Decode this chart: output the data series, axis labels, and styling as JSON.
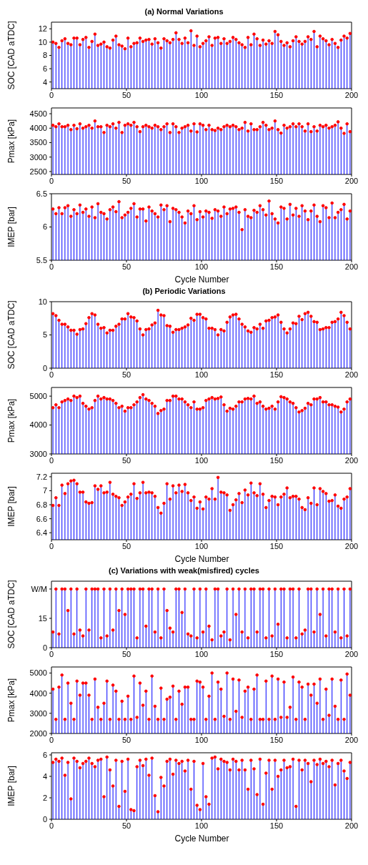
{
  "chart_data": [
    {
      "type": "lollipop",
      "title": "(a) Normal Variations",
      "ylabel": "SOC [CAD aTDC]",
      "xlim": [
        0,
        200
      ],
      "xticks": [
        0,
        50,
        100,
        150,
        200
      ],
      "ylim": [
        3,
        13
      ],
      "yticks": [
        4,
        6,
        8,
        10,
        12
      ],
      "marker": "circle",
      "grid": false,
      "legend": false,
      "x": [
        1,
        3,
        5,
        7,
        9,
        11,
        13,
        15,
        17,
        19,
        21,
        23,
        25,
        27,
        29,
        31,
        33,
        35,
        37,
        39,
        41,
        43,
        45,
        47,
        49,
        51,
        53,
        55,
        57,
        59,
        61,
        63,
        65,
        67,
        69,
        71,
        73,
        75,
        77,
        79,
        81,
        83,
        85,
        87,
        89,
        91,
        93,
        95,
        97,
        99,
        101,
        103,
        105,
        107,
        109,
        111,
        113,
        115,
        117,
        119,
        121,
        123,
        125,
        127,
        129,
        131,
        133,
        135,
        137,
        139,
        141,
        143,
        145,
        147,
        149,
        151,
        153,
        155,
        157,
        159,
        161,
        163,
        165,
        167,
        169,
        171,
        173,
        175,
        177,
        179,
        181,
        183,
        185,
        187,
        189,
        191,
        193,
        195,
        197,
        199
      ],
      "series": [
        {
          "color": "#ff0000",
          "values": [
            10,
            9.8,
            9.2,
            10.2,
            10.5,
            9.8,
            9.6,
            10.6,
            10.6,
            9.6,
            10.4,
            10.7,
            9.2,
            10.1,
            11.2,
            9.5,
            9.7,
            10,
            9.3,
            9.1,
            10.3,
            10.9,
            9.6,
            9.4,
            9,
            10.6,
            9.3,
            9.8,
            9.9,
            10.6,
            10.1,
            10.3,
            10.4,
            9.7,
            10.5,
            9.9,
            9.1,
            10.5,
            10.2,
            9.9,
            10.4,
            11.4,
            10.4,
            9.8,
            10.6,
            9.9,
            11.7,
            9.5,
            10.9,
            9.3,
            9.8,
            10.2,
            10.8,
            9.5,
            10.6,
            10.7,
            9.8,
            10.5,
            9.8,
            10.1,
            10.7,
            10.4,
            9.9,
            9.6,
            9.2,
            10.7,
            9.6,
            11.2,
            10.5,
            9.5,
            10.3,
            9.7,
            10.2,
            9.8,
            11.6,
            11.1,
            10.1,
            9.5,
            9.9,
            9.3,
            10.2,
            10.8,
            10.1,
            9.7,
            10.1,
            10.8,
            10.4,
            11.6,
            9.3,
            10.9,
            10.5,
            10.2,
            9.6,
            10.4,
            9.8,
            9.2,
            10.3,
            10.9,
            10.6,
            11.3
          ]
        }
      ]
    },
    {
      "type": "lollipop",
      "ylabel": "Pmax [kPa]",
      "xlim": [
        0,
        200
      ],
      "xticks": [
        0,
        50,
        100,
        150,
        200
      ],
      "ylim": [
        2400,
        4700
      ],
      "yticks": [
        2500,
        3000,
        3500,
        4000,
        4500
      ],
      "marker": "circle",
      "grid": false,
      "legend": false,
      "x": [
        1,
        3,
        5,
        7,
        9,
        11,
        13,
        15,
        17,
        19,
        21,
        23,
        25,
        27,
        29,
        31,
        33,
        35,
        37,
        39,
        41,
        43,
        45,
        47,
        49,
        51,
        53,
        55,
        57,
        59,
        61,
        63,
        65,
        67,
        69,
        71,
        73,
        75,
        77,
        79,
        81,
        83,
        85,
        87,
        89,
        91,
        93,
        95,
        97,
        99,
        101,
        103,
        105,
        107,
        109,
        111,
        113,
        115,
        117,
        119,
        121,
        123,
        125,
        127,
        129,
        131,
        133,
        135,
        137,
        139,
        141,
        143,
        145,
        147,
        149,
        151,
        153,
        155,
        157,
        159,
        161,
        163,
        165,
        167,
        169,
        171,
        173,
        175,
        177,
        179,
        181,
        183,
        185,
        187,
        189,
        191,
        193,
        195,
        197,
        199
      ],
      "series": [
        {
          "color": "#ff0000",
          "values": [
            4100,
            4050,
            4150,
            4050,
            4050,
            4100,
            3950,
            4100,
            3980,
            4150,
            4000,
            4050,
            4100,
            4000,
            4250,
            4050,
            4050,
            3850,
            4100,
            4050,
            4150,
            4000,
            4200,
            3850,
            4100,
            4150,
            4100,
            4200,
            4050,
            3880,
            4050,
            4100,
            4050,
            4000,
            4100,
            4050,
            3950,
            4050,
            4150,
            3850,
            4150,
            4050,
            3850,
            4000,
            4050,
            4100,
            3900,
            4150,
            3870,
            4150,
            4100,
            3950,
            4100,
            3950,
            3920,
            4000,
            3950,
            4050,
            4100,
            4050,
            4100,
            4050,
            3950,
            4000,
            4200,
            3900,
            4150,
            3950,
            3950,
            4050,
            4200,
            4100,
            3950,
            4000,
            4250,
            3950,
            3830,
            4100,
            4000,
            4050,
            4150,
            4050,
            4150,
            4050,
            3900,
            4150,
            3880,
            4050,
            3900,
            4100,
            4050,
            4100,
            4000,
            4050,
            4100,
            4220,
            4000,
            3820,
            4150,
            3880
          ]
        }
      ]
    },
    {
      "type": "lollipop",
      "ylabel": "IMEP [bar]",
      "xlabel": "Cycle Number",
      "xlim": [
        0,
        200
      ],
      "xticks": [
        0,
        50,
        100,
        150,
        200
      ],
      "ylim": [
        5.5,
        6.5
      ],
      "yticks": [
        5.5,
        6,
        6.5
      ],
      "marker": "circle",
      "grid": false,
      "legend": false,
      "x": [
        1,
        3,
        5,
        7,
        9,
        11,
        13,
        15,
        17,
        19,
        21,
        23,
        25,
        27,
        29,
        31,
        33,
        35,
        37,
        39,
        41,
        43,
        45,
        47,
        49,
        51,
        53,
        55,
        57,
        59,
        61,
        63,
        65,
        67,
        69,
        71,
        73,
        75,
        77,
        79,
        81,
        83,
        85,
        87,
        89,
        91,
        93,
        95,
        97,
        99,
        101,
        103,
        105,
        107,
        109,
        111,
        113,
        115,
        117,
        119,
        121,
        123,
        125,
        127,
        129,
        131,
        133,
        135,
        137,
        139,
        141,
        143,
        145,
        147,
        149,
        151,
        153,
        155,
        157,
        159,
        161,
        163,
        165,
        167,
        169,
        171,
        173,
        175,
        177,
        179,
        181,
        183,
        185,
        187,
        189,
        191,
        193,
        195,
        197,
        199
      ],
      "series": [
        {
          "color": "#ff0000",
          "values": [
            6.27,
            6.2,
            6.29,
            6.2,
            6.29,
            6.32,
            6.16,
            6.26,
            6.2,
            6.33,
            6.22,
            6.27,
            6.16,
            6.3,
            6.14,
            6.35,
            6.22,
            6.2,
            6.12,
            6.26,
            6.3,
            6.23,
            6.38,
            6.14,
            6.18,
            6.22,
            6.28,
            6.35,
            6.15,
            6.27,
            6.27,
            6.09,
            6.3,
            6.24,
            6.2,
            6.15,
            6.33,
            6.26,
            6.32,
            6.08,
            6.28,
            6.26,
            6.22,
            6.15,
            6.06,
            6.24,
            6.2,
            6.32,
            6.11,
            6.23,
            6.15,
            6.24,
            6.22,
            6.13,
            6.26,
            6.24,
            6.16,
            6.3,
            6.2,
            6.27,
            6.28,
            6.3,
            6.22,
            5.96,
            6.26,
            6.16,
            6.14,
            6.25,
            6.22,
            6.32,
            6.26,
            6.18,
            6.39,
            6.2,
            6.12,
            6.06,
            6.3,
            6.28,
            6.12,
            6.34,
            6.18,
            6.28,
            6.16,
            6.32,
            6.24,
            6.11,
            6.24,
            6.33,
            6.16,
            6.08,
            6.32,
            6.29,
            6.14,
            6.36,
            6.14,
            6.22,
            6.26,
            6.34,
            6.12,
            6.24
          ]
        }
      ]
    },
    {
      "type": "lollipop",
      "title": "(b) Periodic Variations",
      "ylabel": "SOC [CAD aTDC]",
      "xlim": [
        0,
        200
      ],
      "xticks": [
        0,
        50,
        100,
        150,
        200
      ],
      "ylim": [
        0,
        10
      ],
      "yticks": [
        0,
        5,
        10
      ],
      "marker": "circle",
      "grid": false,
      "legend": false,
      "x": [
        1,
        3,
        5,
        7,
        9,
        11,
        13,
        15,
        17,
        19,
        21,
        23,
        25,
        27,
        29,
        31,
        33,
        35,
        37,
        39,
        41,
        43,
        45,
        47,
        49,
        51,
        53,
        55,
        57,
        59,
        61,
        63,
        65,
        67,
        69,
        71,
        73,
        75,
        77,
        79,
        81,
        83,
        85,
        87,
        89,
        91,
        93,
        95,
        97,
        99,
        101,
        103,
        105,
        107,
        109,
        111,
        113,
        115,
        117,
        119,
        121,
        123,
        125,
        127,
        129,
        131,
        133,
        135,
        137,
        139,
        141,
        143,
        145,
        147,
        149,
        151,
        153,
        155,
        157,
        159,
        161,
        163,
        165,
        167,
        169,
        171,
        173,
        175,
        177,
        179,
        181,
        183,
        185,
        187,
        189,
        191,
        193,
        195,
        197,
        199
      ],
      "series": [
        {
          "color": "#ff0000",
          "values": [
            8.2,
            7.9,
            7.2,
            6.6,
            6.6,
            6.2,
            5.7,
            5.7,
            5.1,
            5.8,
            5.9,
            6.7,
            7.6,
            8.2,
            8,
            6.6,
            6,
            6.1,
            5.3,
            5.7,
            5.7,
            6.3,
            6.6,
            7.4,
            7.4,
            8.2,
            7.7,
            7.6,
            7.1,
            5.9,
            5,
            5.8,
            5.9,
            6.5,
            6.8,
            8.7,
            8,
            7.9,
            6.4,
            6.3,
            5.4,
            5.8,
            5.8,
            6,
            6.2,
            6.5,
            7.5,
            7.2,
            8.1,
            8.1,
            7.6,
            7.4,
            6,
            6,
            5.8,
            5,
            5.8,
            5.6,
            6.9,
            7.7,
            8,
            8.1,
            7.4,
            6.6,
            6.2,
            5.6,
            5.4,
            6.1,
            5.9,
            6.6,
            6,
            7.1,
            7.2,
            7.6,
            7.7,
            8,
            6.9,
            5.9,
            5.3,
            5.9,
            6.8,
            6.7,
            7.8,
            7.3,
            8.2,
            8.4,
            7.8,
            7,
            6.9,
            5.8,
            5.9,
            6.1,
            6.1,
            6.9,
            7,
            7.4,
            8.4,
            7.9,
            6.9,
            5.9
          ]
        }
      ]
    },
    {
      "type": "lollipop",
      "ylabel": "Pmax [kPa]",
      "xlim": [
        0,
        200
      ],
      "xticks": [
        0,
        50,
        100,
        150,
        200
      ],
      "ylim": [
        3000,
        5300
      ],
      "yticks": [
        3000,
        4000,
        5000
      ],
      "marker": "circle",
      "grid": false,
      "legend": false,
      "x": [
        1,
        3,
        5,
        7,
        9,
        11,
        13,
        15,
        17,
        19,
        21,
        23,
        25,
        27,
        29,
        31,
        33,
        35,
        37,
        39,
        41,
        43,
        45,
        47,
        49,
        51,
        53,
        55,
        57,
        59,
        61,
        63,
        65,
        67,
        69,
        71,
        73,
        75,
        77,
        79,
        81,
        83,
        85,
        87,
        89,
        91,
        93,
        95,
        97,
        99,
        101,
        103,
        105,
        107,
        109,
        111,
        113,
        115,
        117,
        119,
        121,
        123,
        125,
        127,
        129,
        131,
        133,
        135,
        137,
        139,
        141,
        143,
        145,
        147,
        149,
        151,
        153,
        155,
        157,
        159,
        161,
        163,
        165,
        167,
        169,
        171,
        173,
        175,
        177,
        179,
        181,
        183,
        185,
        187,
        189,
        191,
        193,
        195,
        197,
        199
      ],
      "series": [
        {
          "color": "#ff0000",
          "values": [
            4600,
            4700,
            4600,
            4800,
            4850,
            4900,
            4850,
            5000,
            4950,
            5000,
            4750,
            4650,
            4550,
            4600,
            4850,
            5000,
            4900,
            4950,
            4900,
            4900,
            4850,
            4750,
            4600,
            4650,
            4480,
            4600,
            4600,
            4700,
            4800,
            4950,
            5050,
            4900,
            4850,
            4750,
            4650,
            4400,
            4500,
            4550,
            4850,
            4850,
            5000,
            5000,
            4900,
            4900,
            4800,
            4700,
            4600,
            4800,
            4550,
            4550,
            4600,
            4850,
            4900,
            4950,
            4900,
            4920,
            4970,
            4700,
            4480,
            4580,
            4550,
            4650,
            4800,
            4800,
            4900,
            4920,
            4900,
            5000,
            4750,
            4800,
            4650,
            4550,
            4580,
            4650,
            4550,
            4800,
            4980,
            4950,
            4900,
            4800,
            4750,
            4600,
            4450,
            4500,
            4580,
            4750,
            4700,
            4900,
            4900,
            4950,
            4800,
            4800,
            4700,
            4700,
            4650,
            4620,
            4450,
            4550,
            4800,
            4900
          ]
        }
      ]
    },
    {
      "type": "lollipop",
      "ylabel": "IMEP [bar]",
      "xlabel": "Cycle Number",
      "xlim": [
        0,
        200
      ],
      "xticks": [
        0,
        50,
        100,
        150,
        200
      ],
      "ylim": [
        6.3,
        7.25
      ],
      "yticks": [
        6.4,
        6.6,
        6.8,
        7,
        7.2
      ],
      "marker": "circle",
      "grid": false,
      "legend": false,
      "x": [
        1,
        3,
        5,
        7,
        9,
        11,
        13,
        15,
        17,
        19,
        21,
        23,
        25,
        27,
        29,
        31,
        33,
        35,
        37,
        39,
        41,
        43,
        45,
        47,
        49,
        51,
        53,
        55,
        57,
        59,
        61,
        63,
        65,
        67,
        69,
        71,
        73,
        75,
        77,
        79,
        81,
        83,
        85,
        87,
        89,
        91,
        93,
        95,
        97,
        99,
        101,
        103,
        105,
        107,
        109,
        111,
        113,
        115,
        117,
        119,
        121,
        123,
        125,
        127,
        129,
        131,
        133,
        135,
        137,
        139,
        141,
        143,
        145,
        147,
        149,
        151,
        153,
        155,
        157,
        159,
        161,
        163,
        165,
        167,
        169,
        171,
        173,
        175,
        177,
        179,
        181,
        183,
        185,
        187,
        189,
        191,
        193,
        195,
        197,
        199
      ],
      "series": [
        {
          "color": "#ff0000",
          "values": [
            6.79,
            6.9,
            6.79,
            7.08,
            6.96,
            7.1,
            7.14,
            7.15,
            7.1,
            6.98,
            6.98,
            6.84,
            6.82,
            6.83,
            7.07,
            7.02,
            7.07,
            6.97,
            6.98,
            7.12,
            6.95,
            6.92,
            6.9,
            6.79,
            6.84,
            6.91,
            6.95,
            7.1,
            6.89,
            6.97,
            7.12,
            6.97,
            6.98,
            6.97,
            6.92,
            6.76,
            6.68,
            6.82,
            7.1,
            6.88,
            7.07,
            6.97,
            7.08,
            6.99,
            7.09,
            6.97,
            6.86,
            6.91,
            6.75,
            6.84,
            6.74,
            6.91,
            6.88,
            7.03,
            6.88,
            7.19,
            6.98,
            6.97,
            6.94,
            6.72,
            6.8,
            6.87,
            6.96,
            6.83,
            7.01,
            6.94,
            7.11,
            6.97,
            6.93,
            7.1,
            6.95,
            6.76,
            6.86,
            6.92,
            6.91,
            6.8,
            6.91,
            6.95,
            7.04,
            6.9,
            6.92,
            6.92,
            6.88,
            6.76,
            6.73,
            6.9,
            6.82,
            7.04,
            6.8,
            7.03,
            6.99,
            6.96,
            6.85,
            6.86,
            6.94,
            6.78,
            6.75,
            6.88,
            6.91,
            7.03
          ]
        }
      ]
    },
    {
      "type": "lollipop",
      "title": "(c) Variations with weak(misfired) cycles",
      "ylabel": "SOC [CAD aTDC]",
      "xlim": [
        0,
        200
      ],
      "xticks": [
        0,
        50,
        100,
        150,
        200
      ],
      "ylim": [
        0,
        34
      ],
      "yticks": [
        0,
        15,
        {
          "value": 30,
          "label": "W/M"
        }
      ],
      "marker": "circle",
      "grid": false,
      "legend": false,
      "x": [
        1,
        3,
        5,
        7,
        9,
        11,
        13,
        15,
        17,
        19,
        21,
        23,
        25,
        27,
        29,
        31,
        33,
        35,
        37,
        39,
        41,
        43,
        45,
        47,
        49,
        51,
        53,
        55,
        57,
        59,
        61,
        63,
        65,
        67,
        69,
        71,
        73,
        75,
        77,
        79,
        81,
        83,
        85,
        87,
        89,
        91,
        93,
        95,
        97,
        99,
        101,
        103,
        105,
        107,
        109,
        111,
        113,
        115,
        117,
        119,
        121,
        123,
        125,
        127,
        129,
        131,
        133,
        135,
        137,
        139,
        141,
        143,
        145,
        147,
        149,
        151,
        153,
        155,
        157,
        159,
        161,
        163,
        165,
        167,
        169,
        171,
        173,
        175,
        177,
        179,
        181,
        183,
        185,
        187,
        189,
        191,
        193,
        195,
        197,
        199
      ],
      "series": [
        {
          "color": "#ff0000",
          "values": [
            8,
            30,
            7,
            30,
            30,
            19,
            30,
            7,
            30,
            9,
            6,
            30,
            9,
            30,
            30,
            30,
            5,
            30,
            6,
            30,
            9,
            30,
            19,
            30,
            17,
            30,
            30,
            30,
            5,
            30,
            30,
            11,
            30,
            30,
            8,
            30,
            5,
            30,
            19,
            10,
            8,
            30,
            30,
            18,
            30,
            7,
            6,
            30,
            5,
            30,
            8,
            30,
            11,
            4,
            30,
            30,
            6,
            8,
            30,
            4,
            30,
            17,
            30,
            8,
            30,
            5,
            30,
            30,
            8,
            30,
            30,
            5,
            30,
            6,
            30,
            12,
            30,
            30,
            5,
            30,
            30,
            5,
            30,
            7,
            9,
            30,
            30,
            8,
            30,
            17,
            30,
            6,
            30,
            30,
            8,
            30,
            5,
            30,
            6,
            30
          ]
        }
      ]
    },
    {
      "type": "lollipop",
      "ylabel": "Pmax [kPa]",
      "xlim": [
        0,
        200
      ],
      "xticks": [
        0,
        50,
        100,
        150,
        200
      ],
      "ylim": [
        2000,
        5300
      ],
      "yticks": [
        2000,
        3000,
        4000,
        5000
      ],
      "marker": "circle",
      "grid": false,
      "legend": false,
      "x": [
        1,
        3,
        5,
        7,
        9,
        11,
        13,
        15,
        17,
        19,
        21,
        23,
        25,
        27,
        29,
        31,
        33,
        35,
        37,
        39,
        41,
        43,
        45,
        47,
        49,
        51,
        53,
        55,
        57,
        59,
        61,
        63,
        65,
        67,
        69,
        71,
        73,
        75,
        77,
        79,
        81,
        83,
        85,
        87,
        89,
        91,
        93,
        95,
        97,
        99,
        101,
        103,
        105,
        107,
        109,
        111,
        113,
        115,
        117,
        119,
        121,
        123,
        125,
        127,
        129,
        131,
        133,
        135,
        137,
        139,
        141,
        143,
        145,
        147,
        149,
        151,
        153,
        155,
        157,
        159,
        161,
        163,
        165,
        167,
        169,
        171,
        173,
        175,
        177,
        179,
        181,
        183,
        185,
        187,
        189,
        191,
        193,
        195,
        197,
        199
      ],
      "series": [
        {
          "color": "#ff0000",
          "values": [
            4200,
            2700,
            4300,
            4900,
            2700,
            4500,
            3500,
            2700,
            4600,
            3900,
            4500,
            4500,
            3900,
            2700,
            4700,
            3300,
            2700,
            3500,
            4600,
            2700,
            4400,
            4100,
            2700,
            3600,
            2700,
            3850,
            2700,
            4850,
            2800,
            4500,
            3400,
            4100,
            2700,
            4850,
            3350,
            2700,
            4250,
            2700,
            3700,
            3800,
            4350,
            2700,
            4100,
            3450,
            4300,
            4300,
            2700,
            2700,
            4600,
            4550,
            4300,
            2700,
            3850,
            5000,
            2700,
            4550,
            4200,
            2850,
            5000,
            2700,
            4700,
            3100,
            4650,
            2800,
            4100,
            4300,
            2700,
            4200,
            4900,
            2700,
            2700,
            4600,
            2700,
            4850,
            2700,
            4700,
            2800,
            4550,
            2800,
            3300,
            4800,
            2700,
            4550,
            4300,
            2700,
            4450,
            3900,
            4450,
            3500,
            4700,
            2700,
            4200,
            2900,
            4700,
            3350,
            2700,
            4650,
            2700,
            4950,
            3900
          ]
        }
      ]
    },
    {
      "type": "lollipop",
      "ylabel": "IMEP [bar]",
      "xlabel": "Cycle Number",
      "xlim": [
        0,
        200
      ],
      "xticks": [
        0,
        50,
        100,
        150,
        200
      ],
      "ylim": [
        0,
        6.2
      ],
      "yticks": [
        0,
        2,
        4,
        6
      ],
      "marker": "circle",
      "grid": false,
      "legend": false,
      "x": [
        1,
        3,
        5,
        7,
        9,
        11,
        13,
        15,
        17,
        19,
        21,
        23,
        25,
        27,
        29,
        31,
        33,
        35,
        37,
        39,
        41,
        43,
        45,
        47,
        49,
        51,
        53,
        55,
        57,
        59,
        61,
        63,
        65,
        67,
        69,
        71,
        73,
        75,
        77,
        79,
        81,
        83,
        85,
        87,
        89,
        91,
        93,
        95,
        97,
        99,
        101,
        103,
        105,
        107,
        109,
        111,
        113,
        115,
        117,
        119,
        121,
        123,
        125,
        127,
        129,
        131,
        133,
        135,
        137,
        139,
        141,
        143,
        145,
        147,
        149,
        151,
        153,
        155,
        157,
        159,
        161,
        163,
        165,
        167,
        169,
        171,
        173,
        175,
        177,
        179,
        181,
        183,
        185,
        187,
        189,
        191,
        193,
        195,
        197,
        199
      ],
      "series": [
        {
          "color": "#ff0000",
          "values": [
            5.3,
            5.6,
            5.4,
            5.7,
            4.1,
            5.3,
            1.9,
            5.7,
            5.4,
            4.8,
            5.2,
            5.4,
            5.7,
            5.2,
            4.9,
            5.5,
            5.6,
            2.1,
            5.8,
            4.6,
            3.1,
            5.5,
            1.2,
            5.4,
            2.6,
            5.6,
            0.9,
            0.8,
            4.9,
            5.5,
            5,
            5.6,
            4.1,
            5.7,
            2.2,
            0.7,
            3.9,
            3.1,
            5.4,
            5.6,
            4.2,
            5.5,
            5.2,
            5.4,
            4.5,
            5.5,
            2.8,
            5.4,
            1.3,
            0.9,
            5.2,
            2.1,
            1.4,
            5.7,
            5.8,
            4.7,
            5.6,
            5.4,
            5.3,
            4.6,
            5.6,
            5.4,
            4.6,
            5.5,
            4.6,
            2.8,
            5.5,
            4.7,
            2.3,
            5.6,
            1.4,
            4.3,
            5.5,
            2.8,
            5.5,
            4,
            4.6,
            5.5,
            4.8,
            4.9,
            5.6,
            1.2,
            5.5,
            4.6,
            5.5,
            5.2,
            3.5,
            5.5,
            5.1,
            5.6,
            5.2,
            5.4,
            4.9,
            5.5,
            3.2,
            5.2,
            5.5,
            4.5,
            3.8,
            5.3
          ]
        }
      ]
    }
  ]
}
